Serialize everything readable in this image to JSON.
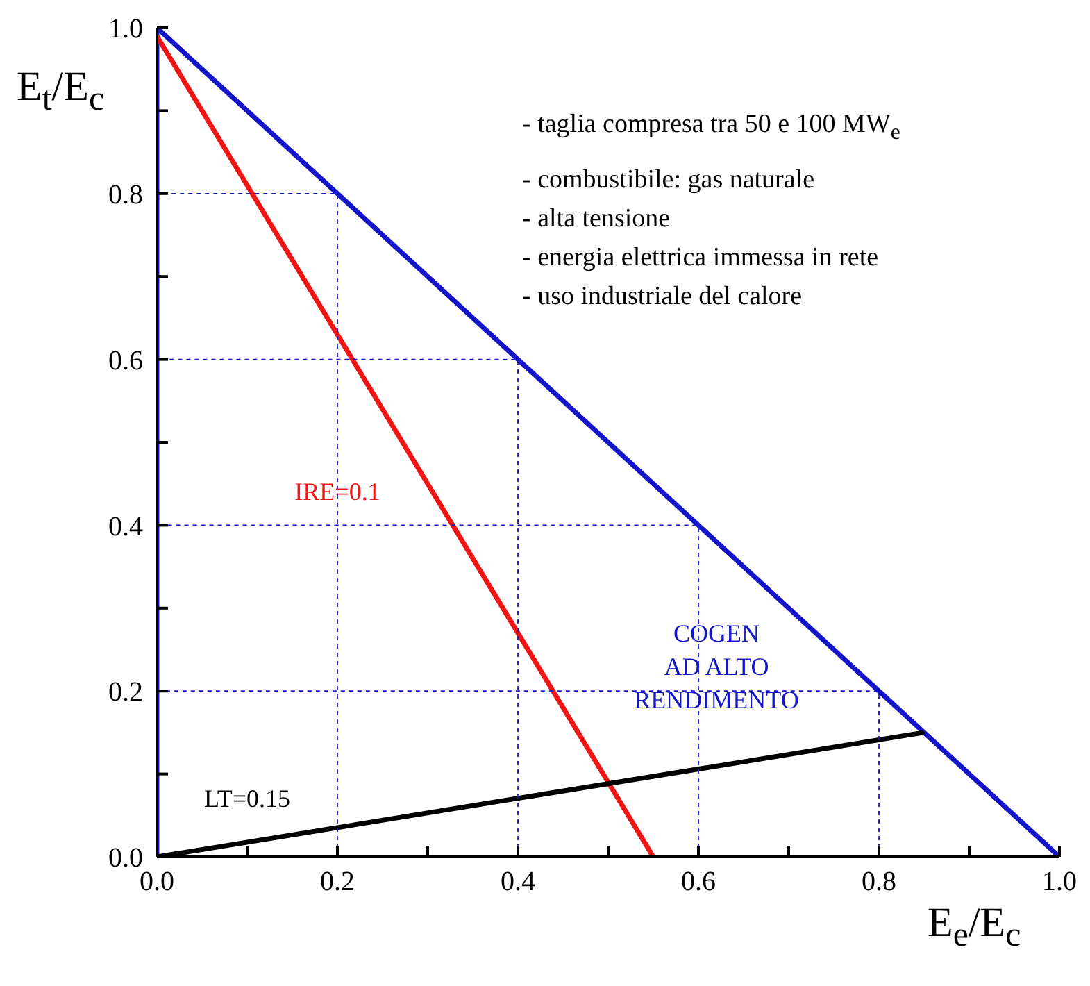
{
  "chart_data": {
    "type": "line",
    "xlabel": "E$_{e}$/E$_{c}$",
    "ylabel": "E$_{t}$/E$_{c}$",
    "series": [
      {
        "name": "COGEN\nAD ALTO\nRENDIMENTO",
        "color": "#1414c8",
        "x": [
          0,
          0,
          1
        ],
        "values": [
          0,
          1,
          0
        ]
      },
      {
        "name": "IRE=0.1",
        "color": "#f01414",
        "x": [
          0,
          0.55
        ],
        "values": [
          0.99,
          0
        ]
      },
      {
        "name": "LT=0.15",
        "color": "#000000",
        "x": [
          0,
          0.85
        ],
        "values": [
          0,
          0.15
        ]
      },
      {
        "color": "#1414c8",
        "line_style": "dashed",
        "x": [
          0.2,
          0.2,
          0
        ],
        "values": [
          0,
          0.8,
          0.8
        ]
      },
      {
        "color": "#1414c8",
        "line_style": "dashed",
        "x": [
          0.4,
          0.4,
          0
        ],
        "values": [
          0,
          0.6,
          0.6
        ]
      },
      {
        "color": "#1414c8",
        "line_style": "dashed",
        "x": [
          0.6,
          0.6,
          0
        ],
        "values": [
          0,
          0.4,
          0.4
        ]
      },
      {
        "color": "#1414c8",
        "line_style": "dashed",
        "x": [
          0.8,
          0.8,
          0
        ],
        "values": [
          0,
          0.2,
          0.2
        ]
      }
    ],
    "xlim": [
      0,
      1
    ],
    "ylim": [
      0,
      1
    ],
    "xticks": [
      {
        "value": 0,
        "label": "0.0"
      },
      {
        "value": 0.1,
        "label": null
      },
      {
        "value": 0.2,
        "label": "0.2"
      },
      {
        "value": 0.3,
        "label": null
      },
      {
        "value": 0.4,
        "label": "0.4"
      },
      {
        "value": 0.5,
        "label": null
      },
      {
        "value": 0.6,
        "label": "0.6"
      },
      {
        "value": 0.7,
        "label": null
      },
      {
        "value": 0.8,
        "label": "0.8"
      },
      {
        "value": 0.9,
        "label": null
      },
      {
        "value": 1,
        "label": "1.0"
      }
    ],
    "yticks": [
      {
        "value": 0,
        "label": "0.0"
      },
      {
        "value": 0.1,
        "label": null
      },
      {
        "value": 0.2,
        "label": "0.2"
      },
      {
        "value": 0.3,
        "label": null
      },
      {
        "value": 0.4,
        "label": "0.4"
      },
      {
        "value": 0.5,
        "label": null
      },
      {
        "value": 0.6,
        "label": "0.6"
      },
      {
        "value": 0.7,
        "label": null
      },
      {
        "value": 0.8,
        "label": "0.8"
      },
      {
        "value": 0.9,
        "label": null
      },
      {
        "value": 1,
        "label": "1.0"
      }
    ],
    "marker": "none",
    "line_style": "solid",
    "annotations": [
      "- taglia compresa tra 50 e 100 MW$_{e}$",
      "- combustibile: gas naturale",
      "- alta tensione",
      "- energia elettrica immessa in rete",
      "- uso industriale del calore"
    ]
  }
}
